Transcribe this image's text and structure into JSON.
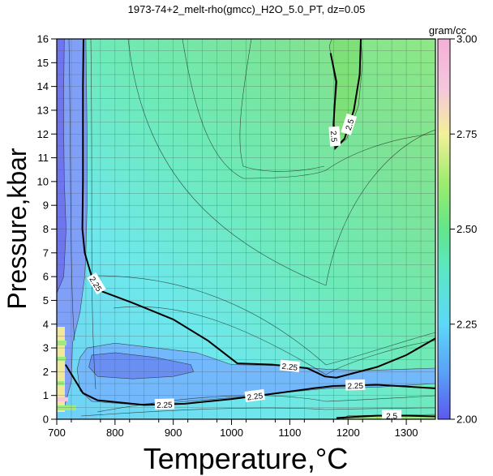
{
  "chart_data": {
    "type": "heatmap",
    "title": "1973-74+2_melt-rho(gmcc)_H2O_5.0_PT, dz=0.05",
    "xlabel": "Temperature,°C",
    "ylabel": "Pressure,kbar",
    "xlim": [
      700,
      1350
    ],
    "ylim": [
      0,
      16
    ],
    "x_ticks": [
      "700",
      "800",
      "900",
      "1000",
      "1100",
      "1200",
      "1300"
    ],
    "y_ticks": [
      "0",
      "1",
      "2",
      "3",
      "4",
      "5",
      "6",
      "7",
      "8",
      "9",
      "10",
      "11",
      "12",
      "13",
      "14",
      "15",
      "16"
    ],
    "grid": true,
    "colorbar": {
      "label": "gram/cc",
      "range": [
        2.0,
        3.0
      ],
      "ticks": [
        "2.00",
        "2.25",
        "2.50",
        "2.75",
        "3.00"
      ],
      "placement": "right"
    },
    "regions": [
      {
        "level": 2.15,
        "color": "#7fa0f6",
        "polygon": [
          [
            700,
            0
          ],
          [
            712,
            0.4
          ],
          [
            725,
            1.6
          ],
          [
            727,
            3.2
          ],
          [
            740,
            4.5
          ],
          [
            748,
            6
          ],
          [
            750,
            7
          ],
          [
            752,
            9
          ],
          [
            752,
            12
          ],
          [
            750,
            16
          ],
          [
            700,
            16
          ]
        ]
      },
      {
        "level": 2.05,
        "color": "#6f74ef",
        "polygon": [
          [
            700,
            5.3
          ],
          [
            712,
            6
          ],
          [
            716,
            8
          ],
          [
            713,
            10
          ],
          [
            712,
            12
          ],
          [
            712,
            14
          ],
          [
            713,
            16
          ],
          [
            700,
            16
          ]
        ]
      },
      {
        "level": 2.2,
        "color": "#72b8fa",
        "polygon": [
          [
            752,
            3.0
          ],
          [
            800,
            3.2
          ],
          [
            870,
            3.0
          ],
          [
            940,
            2.8
          ],
          [
            1000,
            2.3
          ],
          [
            1080,
            2.25
          ],
          [
            1165,
            2.1
          ],
          [
            1230,
            2.05
          ],
          [
            1350,
            2.15
          ],
          [
            1350,
            1.5
          ],
          [
            1250,
            1.35
          ],
          [
            1165,
            1.3
          ],
          [
            1080,
            1.1
          ],
          [
            1000,
            0.9
          ],
          [
            900,
            0.7
          ],
          [
            830,
            0.62
          ],
          [
            760,
            0.75
          ],
          [
            740,
            1.2
          ],
          [
            735,
            2.1
          ],
          [
            740,
            2.6
          ]
        ]
      },
      {
        "level": 2.15,
        "color": "#6a8ff3",
        "polygon": [
          [
            760,
            2.7
          ],
          [
            800,
            2.8
          ],
          [
            870,
            2.6
          ],
          [
            930,
            2.3
          ],
          [
            935,
            2.0
          ],
          [
            900,
            1.8
          ],
          [
            830,
            1.7
          ],
          [
            770,
            1.8
          ],
          [
            755,
            2.2
          ]
        ]
      },
      {
        "level": 2.5,
        "color": "#7ee078",
        "polygon": [
          [
            1168,
            15.7
          ],
          [
            1178,
            14.2
          ],
          [
            1176,
            13.1
          ],
          [
            1178,
            11.4
          ],
          [
            1198,
            11.8
          ],
          [
            1218,
            13.2
          ],
          [
            1225,
            15
          ],
          [
            1222,
            16
          ],
          [
            1172,
            16
          ]
        ]
      },
      {
        "level": 2.45,
        "color": "#9bec7d",
        "polygon": [
          [
            1190,
            0
          ],
          [
            1200,
            0.15
          ],
          [
            1350,
            0.2
          ],
          [
            1350,
            0
          ]
        ]
      }
    ],
    "contour_lines": [
      {
        "level": 2.25,
        "labels": [
          "2.25",
          "2.25"
        ],
        "points": [
          [
            746,
            16
          ],
          [
            745,
            14
          ],
          [
            745,
            12
          ],
          [
            745,
            10
          ],
          [
            744,
            8
          ],
          [
            748,
            7
          ],
          [
            760,
            6
          ],
          [
            775,
            5.4
          ],
          [
            830,
            4.9
          ],
          [
            900,
            4.2
          ],
          [
            960,
            3.3
          ],
          [
            1010,
            2.35
          ],
          [
            1070,
            2.3
          ],
          [
            1130,
            2.15
          ],
          [
            1160,
            1.8
          ],
          [
            1180,
            1.75
          ],
          [
            1250,
            2.2
          ],
          [
            1300,
            2.7
          ],
          [
            1350,
            3.4
          ]
        ]
      },
      {
        "level": 2.25,
        "labels": [
          "2.25",
          "2.25",
          "2.25"
        ],
        "points": [
          [
            715,
            2.3
          ],
          [
            745,
            1.1
          ],
          [
            770,
            0.8
          ],
          [
            850,
            0.6
          ],
          [
            920,
            0.65
          ],
          [
            1000,
            0.85
          ],
          [
            1080,
            1.1
          ],
          [
            1140,
            1.3
          ],
          [
            1175,
            1.4
          ],
          [
            1250,
            1.45
          ],
          [
            1350,
            1.3
          ]
        ]
      },
      {
        "level": 2.5,
        "labels": [
          "2.5",
          "2.5"
        ],
        "points": [
          [
            1170,
            15.4
          ],
          [
            1180,
            14.2
          ],
          [
            1177,
            13.2
          ],
          [
            1175,
            12.4
          ],
          [
            1178,
            11.4
          ],
          [
            1194,
            11.8
          ],
          [
            1210,
            13
          ],
          [
            1220,
            14.5
          ],
          [
            1222,
            16
          ]
        ]
      },
      {
        "level": 2.5,
        "labels": [
          "2.5"
        ],
        "points": [
          [
            1180,
            0.05
          ],
          [
            1210,
            0.1
          ],
          [
            1250,
            0.15
          ],
          [
            1300,
            0.15
          ],
          [
            1350,
            0.12
          ]
        ]
      }
    ]
  }
}
